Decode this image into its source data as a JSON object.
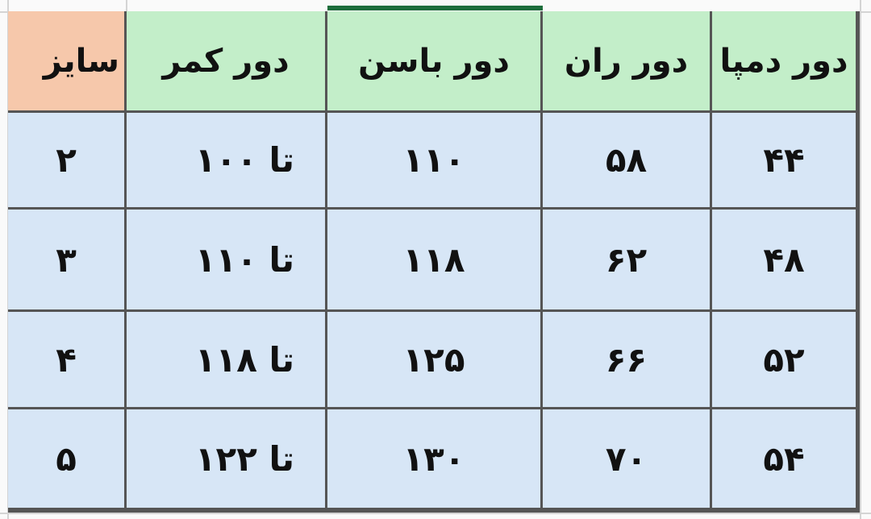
{
  "table": {
    "headers": [
      "سایز",
      "دور کمر",
      "دور باسن",
      "دور ران",
      "دور دمپا"
    ],
    "rows": [
      [
        "۲",
        "تا ۱۰۰",
        "۱۱۰",
        "۵۸",
        "۴۴"
      ],
      [
        "۳",
        "تا ۱۱۰",
        "۱۱۸",
        "۶۲",
        "۴۸"
      ],
      [
        "۴",
        "تا ۱۱۸",
        "۱۲۵",
        "۶۶",
        "۵۲"
      ],
      [
        "۵",
        "تا ۱۲۲",
        "۱۳۰",
        "۷۰",
        "۵۴"
      ]
    ]
  },
  "colors": {
    "size_column": "#f6c8ab",
    "header": "#c3eec9",
    "body": "#d7e6f6",
    "border": "#555555",
    "selection": "#1e6e3c"
  }
}
